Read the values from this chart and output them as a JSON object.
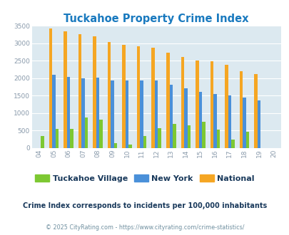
{
  "title": "Tuckahoe Property Crime Index",
  "years": [
    "04",
    "05",
    "06",
    "07",
    "08",
    "09",
    "10",
    "11",
    "12",
    "13",
    "14",
    "15",
    "16",
    "17",
    "18",
    "19",
    "20"
  ],
  "tuckahoe": [
    350,
    540,
    550,
    870,
    820,
    150,
    110,
    350,
    560,
    690,
    650,
    750,
    530,
    250,
    460,
    0,
    0
  ],
  "new_york": [
    0,
    2090,
    2040,
    1990,
    2010,
    1940,
    1940,
    1930,
    1930,
    1820,
    1710,
    1600,
    1550,
    1510,
    1450,
    1370,
    0
  ],
  "national": [
    0,
    3420,
    3340,
    3260,
    3200,
    3040,
    2950,
    2910,
    2870,
    2730,
    2600,
    2500,
    2480,
    2380,
    2200,
    2110,
    0
  ],
  "color_tuckahoe": "#7dc832",
  "color_newyork": "#4a90d9",
  "color_national": "#f5a623",
  "background_color": "#dce9f0",
  "ylabel_max": 3500,
  "yticks": [
    0,
    500,
    1000,
    1500,
    2000,
    2500,
    3000,
    3500
  ],
  "subtitle": "Crime Index corresponds to incidents per 100,000 inhabitants",
  "footer": "© 2025 CityRating.com - https://www.cityrating.com/crime-statistics/",
  "title_color": "#1a7abf",
  "subtitle_color": "#1a3a5c",
  "footer_color": "#7090a0",
  "legend_labels": [
    "Tuckahoe Village",
    "New York",
    "National"
  ]
}
